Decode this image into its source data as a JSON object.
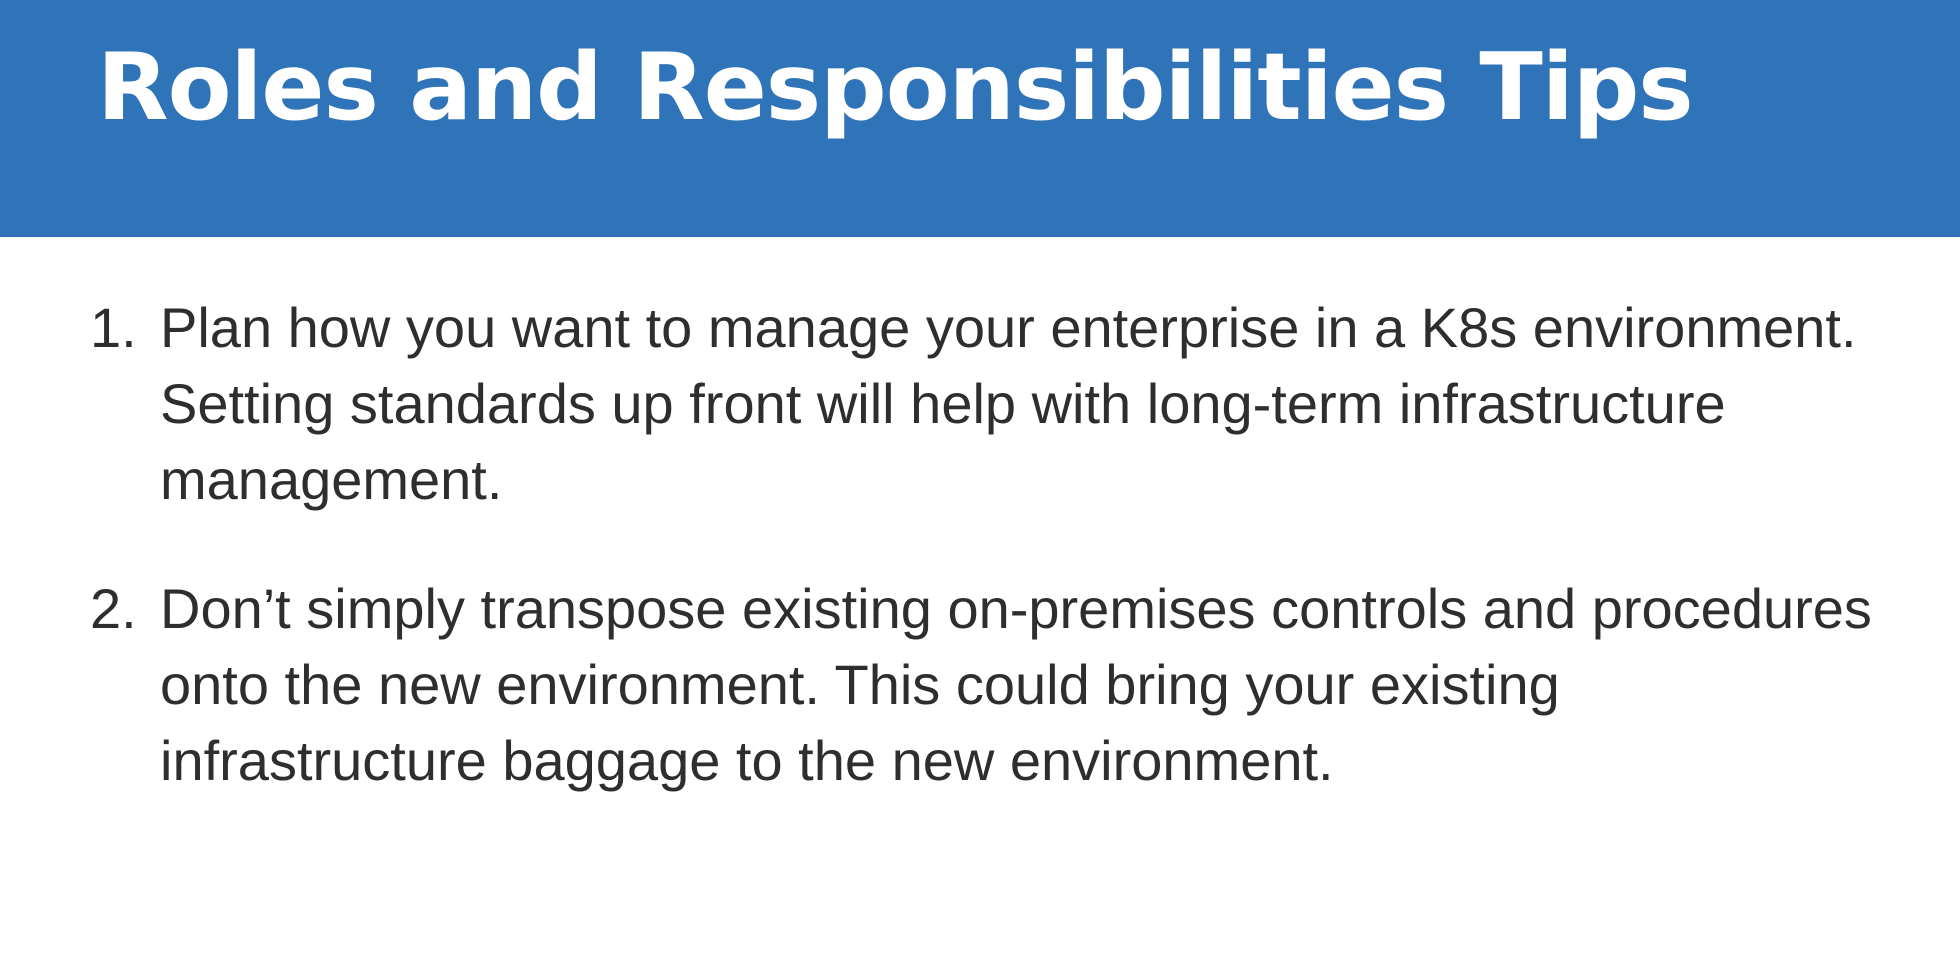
{
  "slide": {
    "title": "Roles and Responsibilities Tips",
    "header_color": "#2f74b8",
    "tips": [
      {
        "number": "1.",
        "text": "Plan how you want to manage your enterprise in a K8s environment. Setting standards up front will help with long-term infrastructure management."
      },
      {
        "number": "2.",
        "text": "Don’t simply transpose existing on-premises controls and procedures onto the new environment. This could bring your existing infrastructure baggage to the new environment."
      }
    ]
  }
}
